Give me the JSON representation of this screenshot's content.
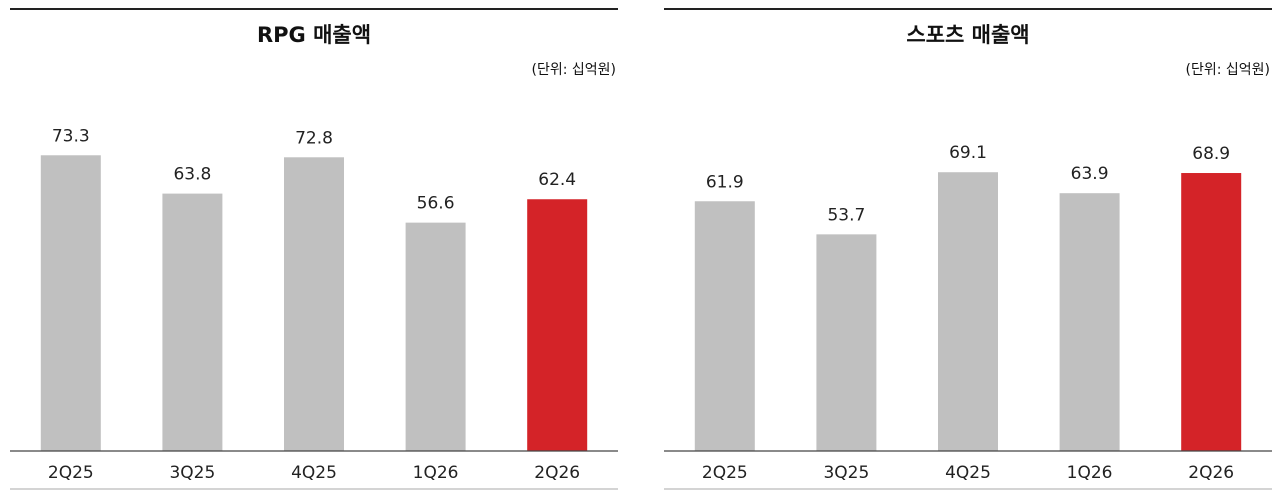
{
  "chart_data": [
    {
      "type": "bar",
      "title": "RPG 매출액",
      "unit_label": "(단위: 십억원)",
      "categories": [
        "2Q25",
        "3Q25",
        "4Q25",
        "1Q26",
        "2Q26"
      ],
      "values": [
        73.3,
        63.8,
        72.8,
        56.6,
        62.4
      ],
      "value_labels": [
        "73.3",
        "63.8",
        "72.8",
        "56.6",
        "62.4"
      ],
      "highlight_index": 4,
      "colors": {
        "bar": "#c0c0c0",
        "highlight": "#d42328",
        "highlight_label": "#d42328"
      },
      "ylim": [
        0,
        87
      ]
    },
    {
      "type": "bar",
      "title": "스포츠 매출액",
      "unit_label": "(단위: 십억원)",
      "categories": [
        "2Q25",
        "3Q25",
        "4Q25",
        "1Q26",
        "2Q26"
      ],
      "values": [
        61.9,
        53.7,
        69.1,
        63.9,
        68.9
      ],
      "value_labels": [
        "61.9",
        "53.7",
        "69.1",
        "63.9",
        "68.9"
      ],
      "highlight_index": 4,
      "colors": {
        "bar": "#c0c0c0",
        "highlight": "#d42328",
        "highlight_label": "#d42328"
      },
      "ylim": [
        0,
        87
      ]
    }
  ]
}
